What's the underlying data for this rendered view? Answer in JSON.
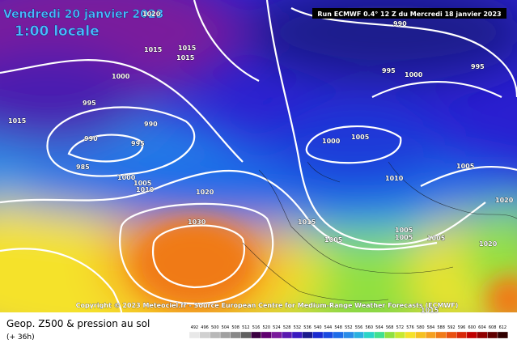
{
  "header": {
    "valid_date": "Vendredi 20 janvier 2023",
    "local_time": "1:00 locale",
    "run": "Run ECMWF 0.4° 12 Z du Mercredi 18 janvier 2023"
  },
  "isobar_labels": [
    "1020",
    "1015",
    "1015",
    "1015",
    "1000",
    "995",
    "990",
    "990",
    "995",
    "985",
    "1000",
    "1005",
    "1010",
    "1020",
    "1030",
    "1015",
    "990",
    "995",
    "1000",
    "995",
    "1000",
    "1005",
    "1010",
    "1005",
    "1015",
    "1005",
    "1005",
    "1005",
    "1005",
    "1020",
    "1020",
    "1015"
  ],
  "footer": {
    "copyright": "Copyright © 2023 Meteociel.fr - Source European Centre for Medium-Range Weather Forecasts (ECMWF)",
    "title": "Geop. Z500 & pression au sol",
    "step": "(+ 36h)"
  },
  "scale_labels": [
    "492",
    "496",
    "500",
    "504",
    "508",
    "512",
    "516",
    "520",
    "524",
    "528",
    "532",
    "536",
    "540",
    "544",
    "548",
    "552",
    "556",
    "560",
    "564",
    "568",
    "572",
    "576",
    "580",
    "584",
    "588",
    "592",
    "596",
    "600",
    "604",
    "608",
    "612"
  ]
}
